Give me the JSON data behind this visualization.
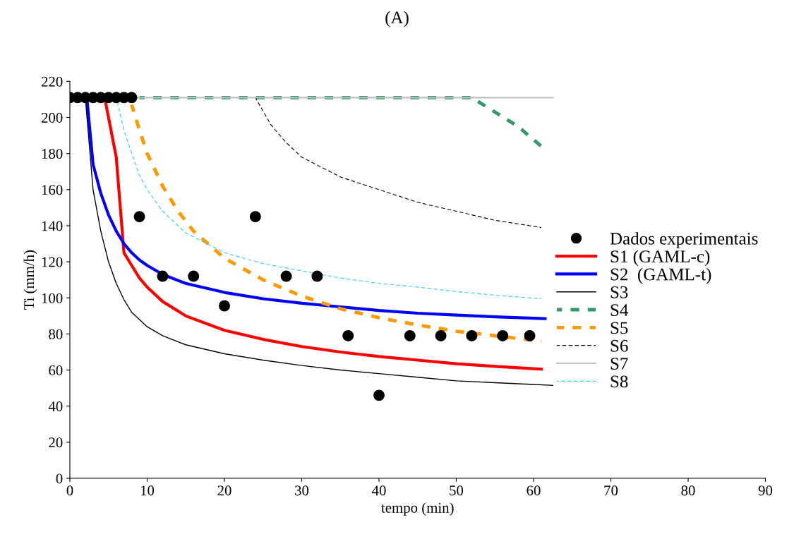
{
  "chart_data": {
    "type": "line",
    "title": "(A)",
    "xlabel": "tempo (min)",
    "ylabel": "Ti (mm/h)",
    "xlim": [
      0,
      90
    ],
    "xticks": [
      0,
      10,
      20,
      30,
      40,
      50,
      60,
      70,
      80,
      90
    ],
    "ylim": [
      0,
      220
    ],
    "yticks": [
      0,
      20,
      40,
      60,
      80,
      100,
      120,
      140,
      160,
      180,
      200,
      220
    ],
    "grid": false,
    "legend": "right",
    "series": [
      {
        "name": "Dados experimentais",
        "type": "scatter",
        "marker": "circle",
        "color": "#000000",
        "x": [
          0,
          1,
          2,
          3,
          4,
          5,
          6,
          7,
          8,
          9,
          12,
          16,
          20,
          24,
          28,
          32,
          36,
          40,
          44,
          48,
          52,
          56,
          59.5
        ],
        "values": [
          211,
          211,
          211,
          211,
          211,
          211,
          211,
          211,
          211,
          145,
          112,
          112,
          95.6,
          145,
          112,
          112,
          79,
          46,
          79,
          79,
          79,
          79,
          79
        ]
      },
      {
        "name": "S1 (GAML-c)",
        "color": "#ff0000",
        "line_style": "solid",
        "x": [
          4.5,
          6,
          7,
          8,
          9,
          10,
          12,
          15,
          20,
          25,
          30,
          35,
          40,
          45,
          50,
          55,
          61
        ],
        "values": [
          211,
          178,
          125,
          118,
          111,
          106,
          98,
          90,
          82,
          77,
          73,
          70,
          67.5,
          65.5,
          63.5,
          62,
          60.5
        ]
      },
      {
        "name": "S2  (GAML-t)",
        "color": "#0000ff",
        "line_style": "solid",
        "x": [
          2.2,
          2.5,
          3,
          4,
          5,
          6,
          7,
          8,
          9,
          10,
          12,
          15,
          20,
          25,
          30,
          35,
          40,
          45,
          50,
          55,
          61.5
        ],
        "values": [
          211,
          197,
          174,
          158,
          146,
          137,
          130,
          125,
          121,
          118,
          113,
          108,
          103,
          99.5,
          97,
          95,
          93,
          91.5,
          90.5,
          89.5,
          88.5
        ]
      },
      {
        "name": "S3",
        "color": "#000000",
        "line_style": "solid",
        "x": [
          2,
          3,
          4,
          5,
          6,
          7,
          8,
          10,
          12,
          15,
          20,
          25,
          30,
          35,
          40,
          45,
          50,
          55,
          60,
          62.5
        ],
        "values": [
          211,
          160,
          137,
          120,
          108,
          99,
          92,
          84,
          79,
          74,
          69,
          65.5,
          62.5,
          60,
          58,
          56,
          54,
          53,
          52,
          51.5
        ]
      },
      {
        "name": "S4",
        "color": "#339966",
        "line_style": "dashed",
        "x": [
          9,
          52,
          55,
          58,
          61
        ],
        "values": [
          211,
          211,
          203,
          195,
          184
        ]
      },
      {
        "name": "S5",
        "color": "#ff9900",
        "line_style": "dashed",
        "x": [
          8,
          9,
          10,
          12,
          14,
          16,
          20,
          25,
          30,
          35,
          40,
          45,
          50,
          55,
          61
        ],
        "values": [
          207,
          193,
          180,
          162,
          148,
          137,
          122,
          110,
          101,
          94,
          89,
          85,
          81.5,
          79,
          76
        ]
      },
      {
        "name": "S6",
        "color": "#000000",
        "line_style": "dashed",
        "x": [
          24,
          26,
          28,
          30,
          35,
          40,
          45,
          50,
          55,
          61
        ],
        "values": [
          211,
          196,
          186,
          178,
          167,
          160,
          153,
          148,
          143,
          139
        ]
      },
      {
        "name": "S7",
        "color": "#c0c0c0",
        "line_style": "solid",
        "x": [
          8,
          62.5
        ],
        "values": [
          211,
          211
        ]
      },
      {
        "name": "S8",
        "color": "#33ccff",
        "line_style": "dashed",
        "x": [
          6,
          7,
          8,
          9,
          10,
          12,
          15,
          20,
          25,
          30,
          35,
          40,
          45,
          50,
          55,
          61
        ],
        "values": [
          211,
          193,
          180,
          168,
          160,
          148,
          136,
          125,
          119,
          115,
          111,
          108,
          106,
          103.5,
          101.5,
          99.5
        ]
      }
    ]
  }
}
